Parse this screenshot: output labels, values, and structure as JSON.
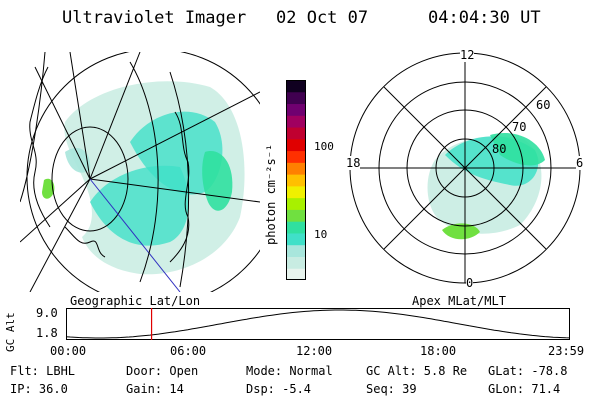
{
  "header": {
    "title": "Ultraviolet Imager",
    "date": "02 Oct 07",
    "time": "04:04:30 UT"
  },
  "left_panel": {
    "caption": "Geographic Lat/Lon"
  },
  "right_panel": {
    "caption": "Apex MLat/MLT",
    "mlt_labels": {
      "top": "12",
      "bottom": "0",
      "left": "18",
      "right": "6"
    },
    "lat_labels": [
      "60",
      "70",
      "80"
    ]
  },
  "colorbar": {
    "unit": "photon cm⁻²s⁻¹",
    "ticks": [
      {
        "label": "100",
        "value": 100
      },
      {
        "label": "10",
        "value": 10
      }
    ],
    "colors": [
      "#e8f4ee",
      "#c8ece2",
      "#a8e6dc",
      "#40e0c8",
      "#30e0a0",
      "#70e040",
      "#a8f000",
      "#f0f000",
      "#ffc000",
      "#ff8000",
      "#ff3000",
      "#e00000",
      "#c00030",
      "#a00060",
      "#700070",
      "#400050",
      "#100020"
    ]
  },
  "altitude_plot": {
    "ylabel": "GC Alt",
    "ymax_label": "9.0",
    "ymin_label": "1.8",
    "ymax": 9.0,
    "ymin": 1.8,
    "xticks": [
      "00:00",
      "06:00",
      "12:00",
      "18:00",
      "23:59"
    ],
    "current_time_hours": 4.075
  },
  "status": {
    "filter": "Flt: LBHL",
    "ip": "IP: 36.0",
    "door": "Door: Open",
    "gain": "Gain: 14",
    "mode": "Mode: Normal",
    "dsp": "Dsp:   -5.4",
    "gc_alt": "GC Alt: 5.8 Re",
    "seq": "Seq: 39",
    "glat": "GLat: -78.8",
    "glon": "GLon:  71.4"
  }
}
